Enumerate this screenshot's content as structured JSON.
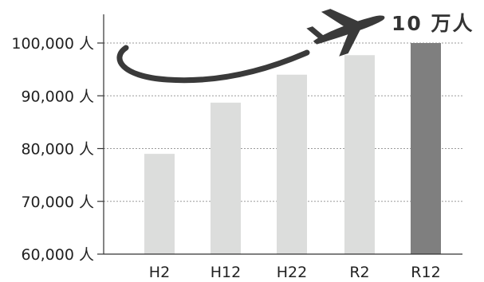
{
  "chart_data": {
    "type": "bar",
    "categories": [
      "H2",
      "H12",
      "H22",
      "R2",
      "R12"
    ],
    "values": [
      79000,
      88700,
      94000,
      97700,
      100000
    ],
    "ylim": [
      60000,
      100000
    ],
    "yticks": [
      {
        "value": 60000,
        "label": "60,000 人"
      },
      {
        "value": 70000,
        "label": "70,000 人"
      },
      {
        "value": 80000,
        "label": "80,000 人"
      },
      {
        "value": 90000,
        "label": "90,000 人"
      },
      {
        "value": 100000,
        "label": "100,000 人"
      }
    ],
    "grid": "dotted horizontal",
    "colors": {
      "bar": "#dcdddc",
      "highlight_bar": "#7f7f7f",
      "axis": "#333333",
      "grid": "#9a9a9a"
    },
    "highlight_category": "R12",
    "annotations": [
      {
        "text": "10 万人",
        "target": "R12"
      }
    ],
    "decoration": "airplane-icon"
  }
}
